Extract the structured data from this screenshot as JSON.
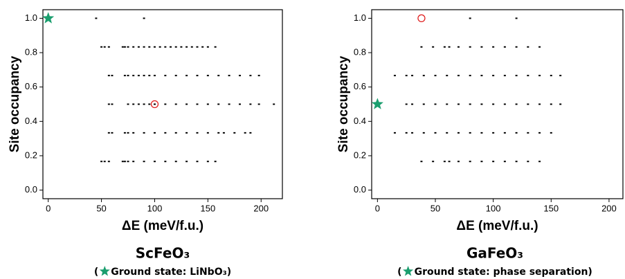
{
  "chart_data": [
    {
      "type": "scatter",
      "title": "ScFeO₃",
      "note": [
        "(",
        "Ground state: LiNbO₃)"
      ],
      "xlabel": "ΔE (meV/f.u.)",
      "ylabel": "Site occupancy",
      "xlim": [
        -5,
        220
      ],
      "ylim": [
        -0.05,
        1.05
      ],
      "xticks": [
        0,
        50,
        100,
        150,
        200
      ],
      "yticks": [
        {
          "value": 0,
          "label": "0.0"
        },
        0.2,
        0.4,
        0.6,
        0.8,
        {
          "value": 1,
          "label": "1.0"
        }
      ],
      "color": "#000000",
      "levels": [
        {
          "y": 1.0,
          "x": [
            45,
            90
          ]
        },
        {
          "y": 0.8333,
          "x": [
            50,
            53,
            57,
            70,
            72,
            75,
            80,
            85,
            90,
            95,
            100,
            105,
            110,
            115,
            120,
            125,
            130,
            135,
            140,
            145,
            150,
            157
          ]
        },
        {
          "y": 0.6667,
          "x": [
            57,
            60,
            72,
            75,
            80,
            85,
            90,
            95,
            100,
            110,
            120,
            130,
            140,
            150,
            160,
            170,
            180,
            190,
            198
          ]
        },
        {
          "y": 0.5,
          "x": [
            57,
            60,
            75,
            80,
            85,
            90,
            95,
            100,
            110,
            120,
            130,
            140,
            150,
            160,
            170,
            180,
            190,
            198,
            212
          ]
        },
        {
          "y": 0.3333,
          "x": [
            57,
            60,
            72,
            75,
            80,
            90,
            100,
            110,
            120,
            130,
            140,
            150,
            160,
            165,
            175,
            185,
            190
          ]
        },
        {
          "y": 0.1667,
          "x": [
            50,
            53,
            57,
            70,
            72,
            75,
            80,
            90,
            100,
            110,
            120,
            130,
            140,
            150,
            157
          ]
        }
      ],
      "star": {
        "x": 0,
        "y": 1.0,
        "color": "#1a9e6e"
      },
      "circle": {
        "x": 100,
        "y": 0.5,
        "color": "#e02020"
      }
    },
    {
      "type": "scatter",
      "title": "GaFeO₃",
      "note": [
        "(",
        "Ground state: phase separation)"
      ],
      "xlabel": "ΔE (meV/f.u.)",
      "ylabel": "Site occupancy",
      "xlim": [
        -5,
        212
      ],
      "ylim": [
        -0.05,
        1.05
      ],
      "xticks": [
        0,
        50,
        100,
        150,
        200
      ],
      "yticks": [
        {
          "value": 0,
          "label": "0.0"
        },
        0.2,
        0.4,
        0.6,
        0.8,
        {
          "value": 1,
          "label": "1.0"
        }
      ],
      "color": "#000000",
      "levels": [
        {
          "y": 1.0,
          "x": [
            80,
            120
          ]
        },
        {
          "y": 0.8333,
          "x": [
            38,
            48,
            58,
            62,
            70,
            80,
            90,
            100,
            110,
            120,
            130,
            140
          ]
        },
        {
          "y": 0.6667,
          "x": [
            15,
            25,
            30,
            40,
            50,
            60,
            70,
            80,
            90,
            100,
            110,
            120,
            130,
            140,
            150,
            158
          ]
        },
        {
          "y": 0.5,
          "x": [
            25,
            30,
            40,
            50,
            60,
            70,
            80,
            90,
            100,
            110,
            120,
            130,
            140,
            150,
            158
          ]
        },
        {
          "y": 0.3333,
          "x": [
            15,
            25,
            30,
            40,
            50,
            60,
            70,
            80,
            90,
            100,
            110,
            120,
            130,
            140,
            150
          ]
        },
        {
          "y": 0.1667,
          "x": [
            38,
            48,
            58,
            62,
            70,
            80,
            90,
            100,
            110,
            120,
            130,
            140
          ]
        }
      ],
      "star": {
        "x": 0,
        "y": 0.5,
        "color": "#1a9e6e"
      },
      "circle": {
        "x": 38,
        "y": 1.0,
        "color": "#e02020"
      }
    }
  ]
}
